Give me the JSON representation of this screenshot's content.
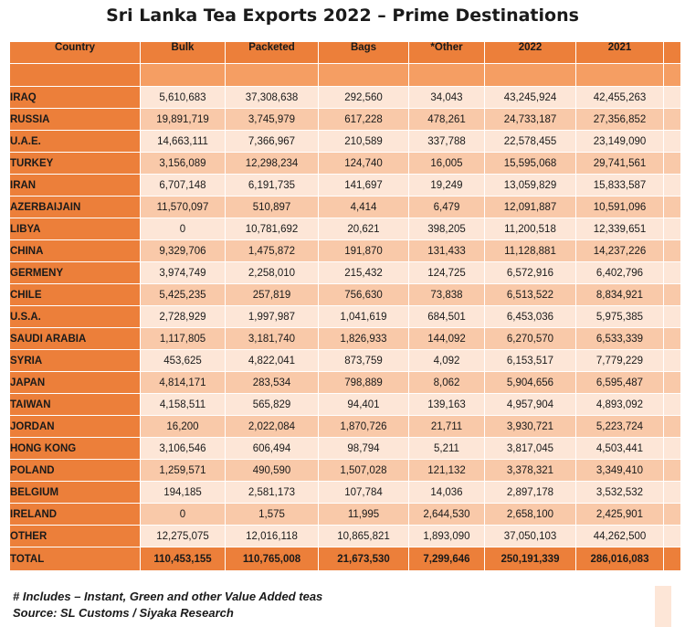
{
  "title": "Sri Lanka Tea Exports 2022 – Prime Destinations",
  "columns": [
    "Country",
    "Bulk",
    "Packeted",
    "Bags",
    "*Other",
    "2022",
    "2021"
  ],
  "rows": [
    {
      "country": "IRAQ",
      "bulk": "5,610,683",
      "packeted": "37,308,638",
      "bags": "292,560",
      "other": "34,043",
      "y2022": "43,245,924",
      "y2021": "42,455,263"
    },
    {
      "country": "RUSSIA",
      "bulk": "19,891,719",
      "packeted": "3,745,979",
      "bags": "617,228",
      "other": "478,261",
      "y2022": "24,733,187",
      "y2021": "27,356,852"
    },
    {
      "country": "U.A.E.",
      "bulk": "14,663,111",
      "packeted": "7,366,967",
      "bags": "210,589",
      "other": "337,788",
      "y2022": "22,578,455",
      "y2021": "23,149,090"
    },
    {
      "country": "TURKEY",
      "bulk": "3,156,089",
      "packeted": "12,298,234",
      "bags": "124,740",
      "other": "16,005",
      "y2022": "15,595,068",
      "y2021": "29,741,561"
    },
    {
      "country": "IRAN",
      "bulk": "6,707,148",
      "packeted": "6,191,735",
      "bags": "141,697",
      "other": "19,249",
      "y2022": "13,059,829",
      "y2021": "15,833,587"
    },
    {
      "country": "AZERBAIJAIN",
      "bulk": "11,570,097",
      "packeted": "510,897",
      "bags": "4,414",
      "other": "6,479",
      "y2022": "12,091,887",
      "y2021": "10,591,096"
    },
    {
      "country": "LIBYA",
      "bulk": "0",
      "packeted": "10,781,692",
      "bags": "20,621",
      "other": "398,205",
      "y2022": "11,200,518",
      "y2021": "12,339,651"
    },
    {
      "country": "CHINA",
      "bulk": "9,329,706",
      "packeted": "1,475,872",
      "bags": "191,870",
      "other": "131,433",
      "y2022": "11,128,881",
      "y2021": "14,237,226"
    },
    {
      "country": "GERMENY",
      "bulk": "3,974,749",
      "packeted": "2,258,010",
      "bags": "215,432",
      "other": "124,725",
      "y2022": "6,572,916",
      "y2021": "6,402,796"
    },
    {
      "country": "CHILE",
      "bulk": "5,425,235",
      "packeted": "257,819",
      "bags": "756,630",
      "other": "73,838",
      "y2022": "6,513,522",
      "y2021": "8,834,921"
    },
    {
      "country": "U.S.A.",
      "bulk": "2,728,929",
      "packeted": "1,997,987",
      "bags": "1,041,619",
      "other": "684,501",
      "y2022": "6,453,036",
      "y2021": "5,975,385"
    },
    {
      "country": "SAUDI ARABIA",
      "bulk": "1,117,805",
      "packeted": "3,181,740",
      "bags": "1,826,933",
      "other": "144,092",
      "y2022": "6,270,570",
      "y2021": "6,533,339"
    },
    {
      "country": "SYRIA",
      "bulk": "453,625",
      "packeted": "4,822,041",
      "bags": "873,759",
      "other": "4,092",
      "y2022": "6,153,517",
      "y2021": "7,779,229"
    },
    {
      "country": "JAPAN",
      "bulk": "4,814,171",
      "packeted": "283,534",
      "bags": "798,889",
      "other": "8,062",
      "y2022": "5,904,656",
      "y2021": "6,595,487"
    },
    {
      "country": "TAIWAN",
      "bulk": "4,158,511",
      "packeted": "565,829",
      "bags": "94,401",
      "other": "139,163",
      "y2022": "4,957,904",
      "y2021": "4,893,092"
    },
    {
      "country": "JORDAN",
      "bulk": "16,200",
      "packeted": "2,022,084",
      "bags": "1,870,726",
      "other": "21,711",
      "y2022": "3,930,721",
      "y2021": "5,223,724"
    },
    {
      "country": "HONG KONG",
      "bulk": "3,106,546",
      "packeted": "606,494",
      "bags": "98,794",
      "other": "5,211",
      "y2022": "3,817,045",
      "y2021": "4,503,441"
    },
    {
      "country": "POLAND",
      "bulk": "1,259,571",
      "packeted": "490,590",
      "bags": "1,507,028",
      "other": "121,132",
      "y2022": "3,378,321",
      "y2021": "3,349,410"
    },
    {
      "country": "BELGIUM",
      "bulk": "194,185",
      "packeted": "2,581,173",
      "bags": "107,784",
      "other": "14,036",
      "y2022": "2,897,178",
      "y2021": "3,532,532"
    },
    {
      "country": "IRELAND",
      "bulk": "0",
      "packeted": "1,575",
      "bags": "11,995",
      "other": "2,644,530",
      "y2022": "2,658,100",
      "y2021": "2,425,901"
    },
    {
      "country": "OTHER",
      "bulk": "12,275,075",
      "packeted": "12,016,118",
      "bags": "10,865,821",
      "other": "1,893,090",
      "y2022": "37,050,103",
      "y2021": "44,262,500"
    }
  ],
  "total": {
    "country": "TOTAL",
    "bulk": "110,453,155",
    "packeted": "110,765,008",
    "bags": "21,673,530",
    "other": "7,299,646",
    "y2022": "250,191,339",
    "y2021": "286,016,083"
  },
  "footnotes": [
    "# Includes – Instant, Green and other Value Added teas",
    "Source: SL Customs / Siyaka Research"
  ],
  "colors": {
    "header": "#ec7f3a",
    "row_light": "#fde6d7",
    "row_dark": "#f9c9a9"
  }
}
